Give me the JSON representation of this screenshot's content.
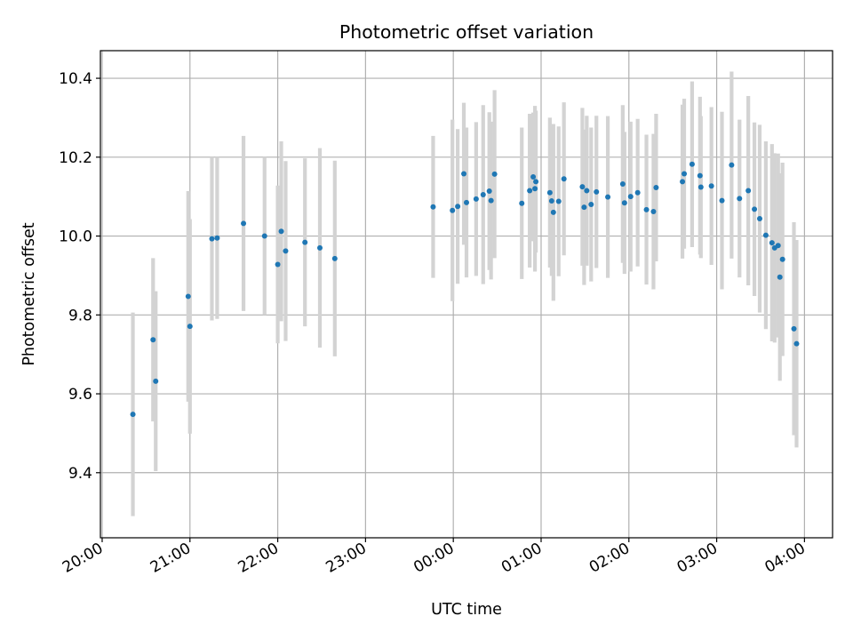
{
  "chart_data": {
    "type": "scatter",
    "title": "Photometric offset variation",
    "xlabel": "UTC time",
    "ylabel": "Photometric offset",
    "x_unit": "UTC time (hours, continuing past midnight)",
    "xlim": [
      19.98,
      28.32
    ],
    "ylim": [
      9.235,
      10.47
    ],
    "grid": true,
    "legend": "none",
    "x_ticks": [
      {
        "value": 20,
        "label": "20:00"
      },
      {
        "value": 21,
        "label": "21:00"
      },
      {
        "value": 22,
        "label": "22:00"
      },
      {
        "value": 23,
        "label": "23:00"
      },
      {
        "value": 24,
        "label": "00:00"
      },
      {
        "value": 25,
        "label": "01:00"
      },
      {
        "value": 26,
        "label": "02:00"
      },
      {
        "value": 27,
        "label": "03:00"
      },
      {
        "value": 28,
        "label": "04:00"
      }
    ],
    "y_ticks": [
      {
        "value": 9.4,
        "label": "9.4"
      },
      {
        "value": 9.6,
        "label": "9.6"
      },
      {
        "value": 9.8,
        "label": "9.8"
      },
      {
        "value": 10.0,
        "label": "10.0"
      },
      {
        "value": 10.2,
        "label": "10.2"
      },
      {
        "value": 10.4,
        "label": "10.4"
      }
    ],
    "colors": {
      "point": "#1f77b4",
      "errorbar": "#d3d3d3",
      "grid": "#b0b0b0"
    },
    "points": [
      {
        "x": 20.35,
        "y": 9.548,
        "err": 0.258
      },
      {
        "x": 20.58,
        "y": 9.737,
        "err": 0.207
      },
      {
        "x": 20.61,
        "y": 9.632,
        "err": 0.228
      },
      {
        "x": 20.98,
        "y": 9.847,
        "err": 0.267
      },
      {
        "x": 21.0,
        "y": 9.771,
        "err": 0.272
      },
      {
        "x": 21.25,
        "y": 9.993,
        "err": 0.207
      },
      {
        "x": 21.31,
        "y": 9.995,
        "err": 0.205
      },
      {
        "x": 21.61,
        "y": 10.032,
        "err": 0.222
      },
      {
        "x": 21.85,
        "y": 10.0,
        "err": 0.2
      },
      {
        "x": 22.0,
        "y": 9.928,
        "err": 0.2
      },
      {
        "x": 22.04,
        "y": 10.012,
        "err": 0.228
      },
      {
        "x": 22.09,
        "y": 9.962,
        "err": 0.228
      },
      {
        "x": 22.31,
        "y": 9.984,
        "err": 0.213
      },
      {
        "x": 22.48,
        "y": 9.97,
        "err": 0.253
      },
      {
        "x": 22.65,
        "y": 9.943,
        "err": 0.248
      },
      {
        "x": 23.77,
        "y": 10.074,
        "err": 0.18
      },
      {
        "x": 23.99,
        "y": 10.065,
        "err": 0.23
      },
      {
        "x": 24.05,
        "y": 10.075,
        "err": 0.196
      },
      {
        "x": 24.12,
        "y": 10.158,
        "err": 0.18
      },
      {
        "x": 24.15,
        "y": 10.085,
        "err": 0.19
      },
      {
        "x": 24.26,
        "y": 10.094,
        "err": 0.195
      },
      {
        "x": 24.34,
        "y": 10.105,
        "err": 0.227
      },
      {
        "x": 24.41,
        "y": 10.114,
        "err": 0.2
      },
      {
        "x": 24.43,
        "y": 10.09,
        "err": 0.2
      },
      {
        "x": 24.47,
        "y": 10.157,
        "err": 0.213
      },
      {
        "x": 24.78,
        "y": 10.083,
        "err": 0.192
      },
      {
        "x": 24.87,
        "y": 10.115,
        "err": 0.195
      },
      {
        "x": 24.91,
        "y": 10.15,
        "err": 0.163
      },
      {
        "x": 24.93,
        "y": 10.12,
        "err": 0.21
      },
      {
        "x": 24.94,
        "y": 10.138,
        "err": 0.18
      },
      {
        "x": 25.1,
        "y": 10.11,
        "err": 0.19
      },
      {
        "x": 25.12,
        "y": 10.089,
        "err": 0.19
      },
      {
        "x": 25.14,
        "y": 10.06,
        "err": 0.224
      },
      {
        "x": 25.2,
        "y": 10.088,
        "err": 0.19
      },
      {
        "x": 25.26,
        "y": 10.145,
        "err": 0.194
      },
      {
        "x": 25.47,
        "y": 10.125,
        "err": 0.2
      },
      {
        "x": 25.49,
        "y": 10.073,
        "err": 0.197
      },
      {
        "x": 25.52,
        "y": 10.115,
        "err": 0.19
      },
      {
        "x": 25.57,
        "y": 10.08,
        "err": 0.195
      },
      {
        "x": 25.63,
        "y": 10.112,
        "err": 0.193
      },
      {
        "x": 25.76,
        "y": 10.099,
        "err": 0.205
      },
      {
        "x": 25.93,
        "y": 10.132,
        "err": 0.2
      },
      {
        "x": 25.95,
        "y": 10.084,
        "err": 0.18
      },
      {
        "x": 26.02,
        "y": 10.1,
        "err": 0.19
      },
      {
        "x": 26.1,
        "y": 10.11,
        "err": 0.187
      },
      {
        "x": 26.2,
        "y": 10.067,
        "err": 0.19
      },
      {
        "x": 26.28,
        "y": 10.062,
        "err": 0.197
      },
      {
        "x": 26.31,
        "y": 10.123,
        "err": 0.187
      },
      {
        "x": 26.61,
        "y": 10.138,
        "err": 0.195
      },
      {
        "x": 26.63,
        "y": 10.158,
        "err": 0.19
      },
      {
        "x": 26.72,
        "y": 10.182,
        "err": 0.21
      },
      {
        "x": 26.81,
        "y": 10.153,
        "err": 0.2
      },
      {
        "x": 26.82,
        "y": 10.124,
        "err": 0.18
      },
      {
        "x": 26.94,
        "y": 10.127,
        "err": 0.2
      },
      {
        "x": 27.06,
        "y": 10.09,
        "err": 0.225
      },
      {
        "x": 27.17,
        "y": 10.18,
        "err": 0.237
      },
      {
        "x": 27.26,
        "y": 10.095,
        "err": 0.2
      },
      {
        "x": 27.36,
        "y": 10.115,
        "err": 0.24
      },
      {
        "x": 27.43,
        "y": 10.068,
        "err": 0.22
      },
      {
        "x": 27.49,
        "y": 10.044,
        "err": 0.238
      },
      {
        "x": 27.56,
        "y": 10.002,
        "err": 0.238
      },
      {
        "x": 27.63,
        "y": 9.983,
        "err": 0.25
      },
      {
        "x": 27.66,
        "y": 9.97,
        "err": 0.24
      },
      {
        "x": 27.7,
        "y": 9.976,
        "err": 0.233
      },
      {
        "x": 27.72,
        "y": 9.896,
        "err": 0.263
      },
      {
        "x": 27.75,
        "y": 9.941,
        "err": 0.245
      },
      {
        "x": 27.88,
        "y": 9.765,
        "err": 0.27
      },
      {
        "x": 27.91,
        "y": 9.727,
        "err": 0.263
      }
    ]
  }
}
